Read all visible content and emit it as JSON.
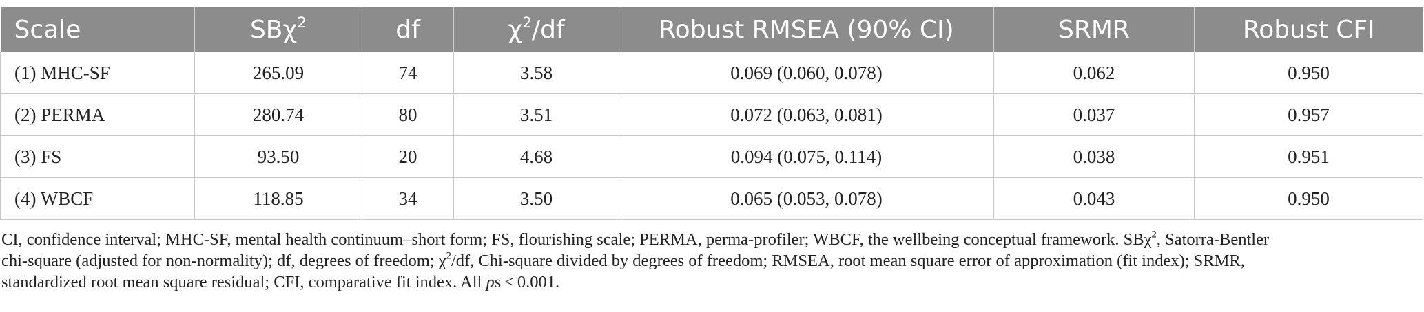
{
  "table": {
    "headers": {
      "scale": "Scale",
      "sb_main": "SBχ",
      "sb_sup": "2",
      "df": "df",
      "chi_main": "χ",
      "chi_sup": "2",
      "chi_rest": "/df",
      "rmsea": "Robust RMSEA (90% CI)",
      "srmr": "SRMR",
      "cfi": "Robust CFI"
    },
    "rows": [
      {
        "scale": "(1) MHC-SF",
        "sbchi2": "265.09",
        "df": "74",
        "chi2df": "3.58",
        "rmsea": "0.069 (0.060, 0.078)",
        "srmr": "0.062",
        "cfi": "0.950"
      },
      {
        "scale": "(2) PERMA",
        "sbchi2": "280.74",
        "df": "80",
        "chi2df": "3.51",
        "rmsea": "0.072 (0.063, 0.081)",
        "srmr": "0.037",
        "cfi": "0.957"
      },
      {
        "scale": "(3) FS",
        "sbchi2": "93.50",
        "df": "20",
        "chi2df": "4.68",
        "rmsea": "0.094 (0.075, 0.114)",
        "srmr": "0.038",
        "cfi": "0.951"
      },
      {
        "scale": "(4) WBCF",
        "sbchi2": "118.85",
        "df": "34",
        "chi2df": "3.50",
        "rmsea": "0.065 (0.053, 0.078)",
        "srmr": "0.043",
        "cfi": "0.950"
      }
    ]
  },
  "notes": {
    "line1_a": "CI, confidence interval; MHC-SF, mental health continuum–short form; FS, flourishing scale; PERMA, perma-profiler; WBCF, the wellbeing conceptual framework. SBχ",
    "line1_sup": "2",
    "line1_b": ", Satorra-Bentler",
    "line2": "chi-square (adjusted for non-normality); df, degrees of freedom; χ",
    "line2_sup": "2",
    "line2_b": "/df, Chi-square divided by degrees of freedom; RMSEA, root mean square error of approximation (fit index); SRMR,",
    "line3_a": "standardized root mean square residual; CFI, comparative fit index. All ",
    "line3_ps": "p",
    "line3_b": "s < 0.001."
  }
}
